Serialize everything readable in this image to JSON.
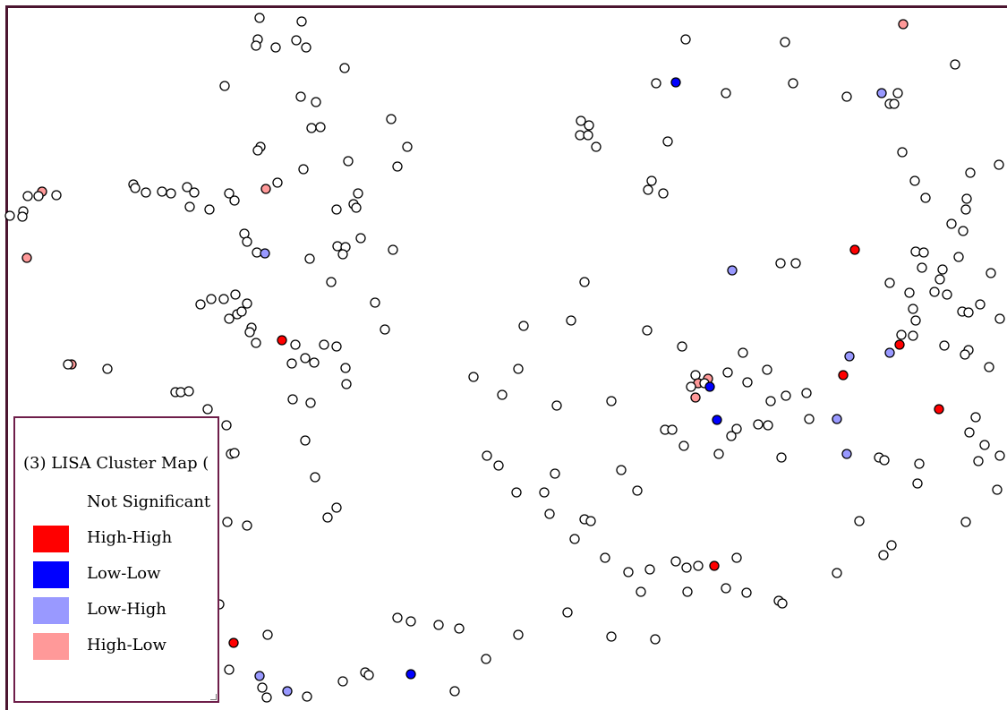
{
  "map": {
    "title": "(3) LISA Cluster Map (",
    "categories": [
      {
        "key": "ns",
        "label": "Not Significant",
        "color": "#ffffff"
      },
      {
        "key": "hh",
        "label": "High-High",
        "color": "#ff0000"
      },
      {
        "key": "ll",
        "label": "Low-Low",
        "color": "#0000ff"
      },
      {
        "key": "lh",
        "label": "Low-High",
        "color": "#9999ff"
      },
      {
        "key": "hl",
        "label": "High-Low",
        "color": "#ff9999"
      }
    ],
    "colors": {
      "frame": "#4b1530",
      "point_outline": "#000000"
    }
  }
}
